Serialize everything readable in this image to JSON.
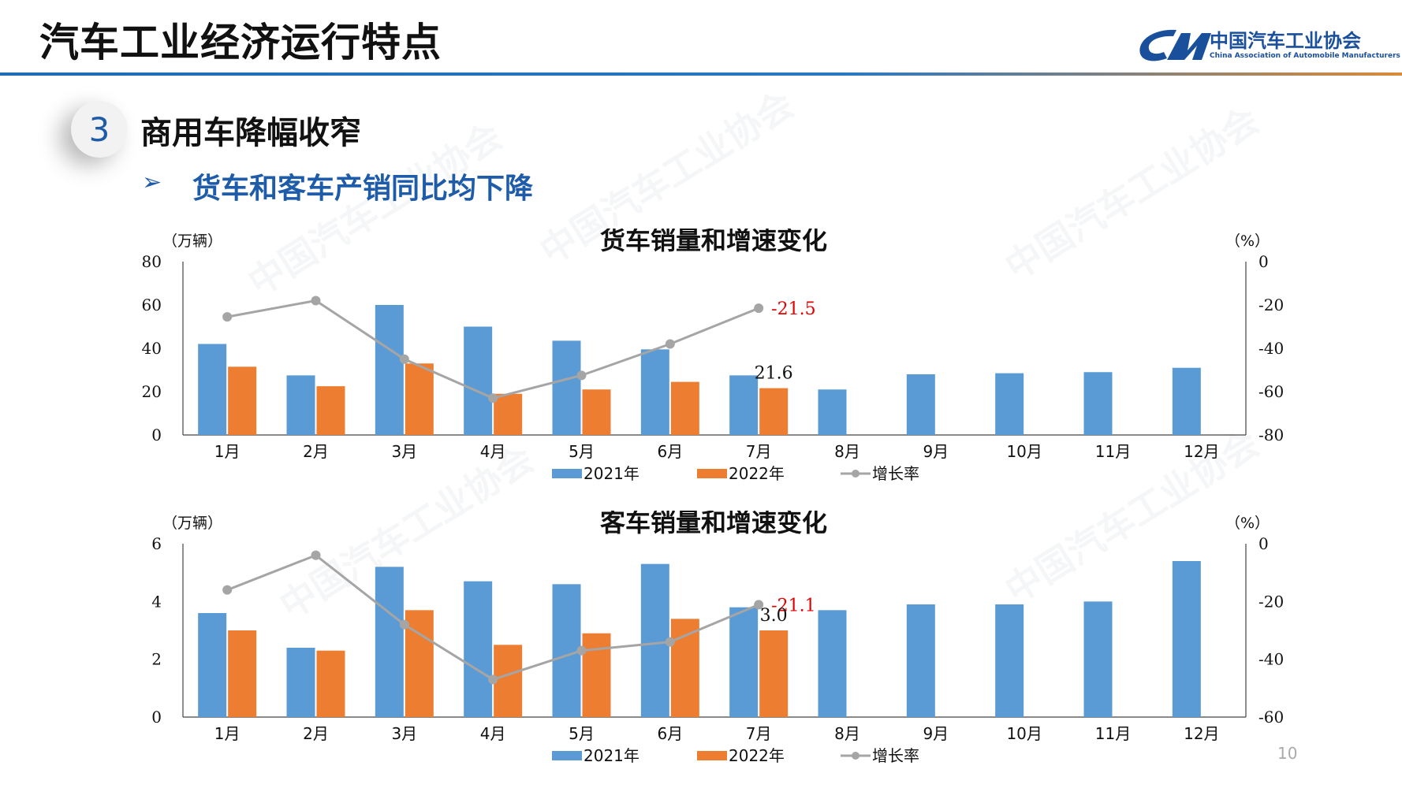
{
  "header": {
    "title": "汽车工业经济运行特点",
    "logo_cn": "中国汽车工业协会",
    "logo_en": "China Association of Automobile Manufacturers"
  },
  "section": {
    "number": "3",
    "title": "商用车降幅收窄",
    "bullet": "➢",
    "subtitle": "货车和客车产销同比均下降"
  },
  "page_number": "10",
  "watermark_text": "中国汽车工业协会",
  "colors": {
    "bar2021": "#5b9bd5",
    "bar2022": "#ed7d31",
    "growth": "#a5a5a5",
    "highlight": "#e00000",
    "brand": "#1e5ba8"
  },
  "chart_data": [
    {
      "type": "bar",
      "title": "货车销量和增速变化",
      "ylabel_left": "（万辆）",
      "ylabel_right": "（%）",
      "categories": [
        "1月",
        "2月",
        "3月",
        "4月",
        "5月",
        "6月",
        "7月",
        "8月",
        "9月",
        "10月",
        "11月",
        "12月"
      ],
      "ylim_left": [
        0,
        80
      ],
      "yticks_left": [
        "0",
        "20",
        "40",
        "60",
        "80"
      ],
      "ylim_right": [
        -80,
        0
      ],
      "yticks_right": [
        "-80",
        "-60",
        "-40",
        "-20",
        "0"
      ],
      "series": [
        {
          "name": "2021年",
          "kind": "bar",
          "values": [
            42,
            27.5,
            60,
            50,
            43.5,
            39.5,
            27.5,
            21,
            28,
            28.5,
            29,
            31
          ]
        },
        {
          "name": "2022年",
          "kind": "bar",
          "values": [
            31.5,
            22.5,
            33,
            19,
            21,
            24.5,
            21.6,
            null,
            null,
            null,
            null,
            null
          ]
        },
        {
          "name": "增长率",
          "kind": "line",
          "axis": "right",
          "values": [
            -25.5,
            -18,
            -45,
            -63,
            -52.5,
            -38,
            -21.5,
            null,
            null,
            null,
            null,
            null
          ]
        }
      ],
      "annotations": {
        "growth_label": "-21.5",
        "value_label": "21.6"
      },
      "legend_position": "bottom"
    },
    {
      "type": "bar",
      "title": "客车销量和增速变化",
      "ylabel_left": "（万辆）",
      "ylabel_right": "（%）",
      "categories": [
        "1月",
        "2月",
        "3月",
        "4月",
        "5月",
        "6月",
        "7月",
        "8月",
        "9月",
        "10月",
        "11月",
        "12月"
      ],
      "ylim_left": [
        0,
        6
      ],
      "yticks_left": [
        "0",
        "2",
        "4",
        "6"
      ],
      "ylim_right": [
        -60,
        0
      ],
      "yticks_right": [
        "-60",
        "-40",
        "-20",
        "0"
      ],
      "series": [
        {
          "name": "2021年",
          "kind": "bar",
          "values": [
            3.6,
            2.4,
            5.2,
            4.7,
            4.6,
            5.3,
            3.8,
            3.7,
            3.9,
            3.9,
            4.0,
            5.4
          ]
        },
        {
          "name": "2022年",
          "kind": "bar",
          "values": [
            3.0,
            2.3,
            3.7,
            2.5,
            2.9,
            3.4,
            3.0,
            null,
            null,
            null,
            null,
            null
          ]
        },
        {
          "name": "增长率",
          "kind": "line",
          "axis": "right",
          "values": [
            -16,
            -4,
            -28,
            -47,
            -37,
            -34,
            -21.1,
            null,
            null,
            null,
            null,
            null
          ]
        }
      ],
      "annotations": {
        "growth_label": "-21.1",
        "value_label": "3.0"
      },
      "legend_position": "bottom"
    }
  ]
}
